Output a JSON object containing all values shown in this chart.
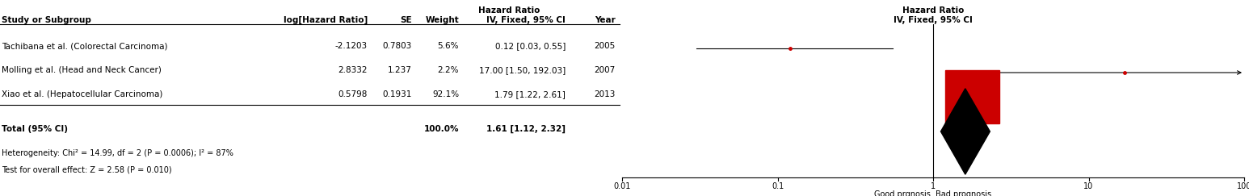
{
  "studies": [
    {
      "name": "Tachibana et al. (Colorectal Carcinoma)",
      "loghr": -2.1203,
      "se": 0.7803,
      "weight": "5.6%",
      "hr_text": "0.12 [0.03, 0.55]",
      "year": "2005",
      "hr": 0.12,
      "ci_lo": 0.03,
      "ci_hi": 0.55,
      "weight_val": 5.6
    },
    {
      "name": "Molling et al. (Head and Neck Cancer)",
      "loghr": 2.8332,
      "se": 1.237,
      "weight": "2.2%",
      "hr_text": "17.00 [1.50, 192.03]",
      "year": "2007",
      "hr": 17.0,
      "ci_lo": 1.5,
      "ci_hi": 192.03,
      "weight_val": 2.2
    },
    {
      "name": "Xiao et al. (Hepatocellular Carcinoma)",
      "loghr": 0.5798,
      "se": 0.1931,
      "weight": "92.1%",
      "hr_text": "1.79 [1.22, 2.61]",
      "year": "2013",
      "hr": 1.79,
      "ci_lo": 1.22,
      "ci_hi": 2.61,
      "weight_val": 92.1
    }
  ],
  "total": {
    "hr_text": "1.61 [1.12, 2.32]",
    "hr": 1.61,
    "ci_lo": 1.12,
    "ci_hi": 2.32,
    "weight": "100.0%"
  },
  "heterogeneity_text": "Heterogeneity: Chi² = 14.99, df = 2 (P = 0.0006); I² = 87%",
  "overall_effect_text": "Test for overall effect: Z = 2.58 (P = 0.010)",
  "xmin": 0.01,
  "xmax": 100,
  "xticks": [
    0.01,
    0.1,
    1,
    10,
    100
  ],
  "xtick_labels": [
    "0.01",
    "0.1",
    "1",
    "10",
    "100"
  ],
  "xlabel_left": "Good prgnosis",
  "xlabel_right": "Bad prognosis",
  "study_color": "#CC0000",
  "diamond_color": "#000000",
  "text_color": "#000000",
  "bg_color": "#FFFFFF",
  "fontsize": 7.5,
  "figwidth": 15.46,
  "figheight": 2.43,
  "dpi": 100
}
